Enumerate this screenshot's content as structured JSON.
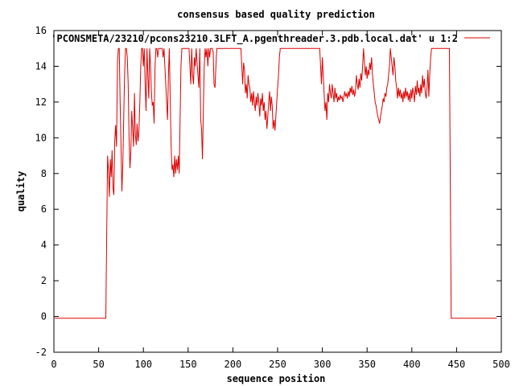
{
  "chart_data": {
    "type": "line",
    "title": "consensus based quality prediction",
    "xlabel": "sequence position",
    "ylabel": "quality",
    "xlim": [
      0,
      500
    ],
    "ylim": [
      -2,
      16
    ],
    "x_ticks": [
      0,
      50,
      100,
      150,
      200,
      250,
      300,
      350,
      400,
      450,
      500
    ],
    "y_ticks": [
      -2,
      0,
      2,
      4,
      6,
      8,
      10,
      12,
      14,
      16
    ],
    "grid": false,
    "legend_position": "top-right",
    "colors": {
      "series": "#dd0000",
      "axes": "#000000"
    },
    "series": [
      {
        "name": "'PCONSMETA/23210/pcons23210.3LFT_A.pgenthreader.3.pdb.local.dat' u 1:2",
        "points": [
          [
            1,
            -0.1
          ],
          [
            58,
            -0.1
          ],
          [
            59,
            4.5
          ],
          [
            60,
            9.0
          ],
          [
            61,
            8.2
          ],
          [
            62,
            6.7
          ],
          [
            63,
            8.8
          ],
          [
            64,
            7.8
          ],
          [
            65,
            9.3
          ],
          [
            66,
            7.2
          ],
          [
            67,
            6.8
          ],
          [
            68,
            9.8
          ],
          [
            69,
            10.7
          ],
          [
            70,
            9.5
          ],
          [
            71,
            14.2
          ],
          [
            72,
            15.0
          ],
          [
            73,
            15.0
          ],
          [
            74,
            12.0
          ],
          [
            75,
            9.5
          ],
          [
            76,
            7.0
          ],
          [
            77,
            8.5
          ],
          [
            78,
            11.0
          ],
          [
            79,
            13.5
          ],
          [
            80,
            15.0
          ],
          [
            81,
            15.0
          ],
          [
            82,
            14.5
          ],
          [
            83,
            13.0
          ],
          [
            84,
            10.0
          ],
          [
            85,
            8.3
          ],
          [
            86,
            9.2
          ],
          [
            87,
            11.5
          ],
          [
            88,
            10.5
          ],
          [
            89,
            9.5
          ],
          [
            90,
            12.5
          ],
          [
            91,
            10.2
          ],
          [
            92,
            9.6
          ],
          [
            93,
            10.8
          ],
          [
            94,
            9.8
          ],
          [
            95,
            10.3
          ],
          [
            96,
            12.0
          ],
          [
            97,
            14.0
          ],
          [
            98,
            15.0
          ],
          [
            99,
            15.0
          ],
          [
            100,
            14.0
          ],
          [
            101,
            15.0
          ],
          [
            102,
            13.0
          ],
          [
            103,
            11.5
          ],
          [
            104,
            15.0
          ],
          [
            105,
            13.5
          ],
          [
            106,
            12.2
          ],
          [
            107,
            15.0
          ],
          [
            108,
            14.0
          ],
          [
            109,
            12.5
          ],
          [
            110,
            11.8
          ],
          [
            111,
            12.0
          ],
          [
            112,
            10.8
          ],
          [
            113,
            14.0
          ],
          [
            114,
            15.0
          ],
          [
            115,
            15.0
          ],
          [
            116,
            14.5
          ],
          [
            117,
            15.0
          ],
          [
            118,
            15.0
          ],
          [
            119,
            15.0
          ],
          [
            120,
            15.0
          ],
          [
            121,
            15.0
          ],
          [
            122,
            14.5
          ],
          [
            123,
            15.0
          ],
          [
            124,
            14.0
          ],
          [
            125,
            13.0
          ],
          [
            126,
            12.0
          ],
          [
            127,
            11.0
          ],
          [
            128,
            13.5
          ],
          [
            129,
            15.0
          ],
          [
            130,
            12.0
          ],
          [
            131,
            9.5
          ],
          [
            132,
            8.2
          ],
          [
            133,
            8.5
          ],
          [
            134,
            7.8
          ],
          [
            135,
            9.0
          ],
          [
            136,
            8.0
          ],
          [
            137,
            8.8
          ],
          [
            138,
            8.2
          ],
          [
            139,
            9.0
          ],
          [
            140,
            8.0
          ],
          [
            141,
            11.0
          ],
          [
            142,
            14.0
          ],
          [
            143,
            15.0
          ],
          [
            144,
            15.0
          ],
          [
            150,
            15.0
          ],
          [
            151,
            15.0
          ],
          [
            152,
            14.0
          ],
          [
            153,
            13.0
          ],
          [
            154,
            15.0
          ],
          [
            155,
            13.5
          ],
          [
            156,
            13.0
          ],
          [
            157,
            14.5
          ],
          [
            158,
            14.0
          ],
          [
            159,
            15.0
          ],
          [
            160,
            14.2
          ],
          [
            161,
            13.5
          ],
          [
            162,
            12.8
          ],
          [
            163,
            15.0
          ],
          [
            164,
            11.0
          ],
          [
            165,
            10.5
          ],
          [
            166,
            8.8
          ],
          [
            167,
            11.5
          ],
          [
            168,
            14.0
          ],
          [
            169,
            15.0
          ],
          [
            170,
            14.5
          ],
          [
            171,
            15.0
          ],
          [
            172,
            14.0
          ],
          [
            173,
            15.0
          ],
          [
            174,
            14.5
          ],
          [
            175,
            15.0
          ],
          [
            176,
            15.0
          ],
          [
            177,
            15.0
          ],
          [
            178,
            14.8
          ],
          [
            179,
            13.0
          ],
          [
            180,
            12.8
          ],
          [
            181,
            14.0
          ],
          [
            182,
            15.0
          ],
          [
            183,
            15.0
          ],
          [
            209,
            15.0
          ],
          [
            210,
            14.0
          ],
          [
            211,
            13.0
          ],
          [
            212,
            14.2
          ],
          [
            213,
            13.8
          ],
          [
            214,
            12.5
          ],
          [
            215,
            13.0
          ],
          [
            216,
            12.2
          ],
          [
            217,
            13.5
          ],
          [
            218,
            13.0
          ],
          [
            219,
            12.8
          ],
          [
            220,
            12.0
          ],
          [
            221,
            12.5
          ],
          [
            222,
            11.8
          ],
          [
            223,
            12.6
          ],
          [
            224,
            12.0
          ],
          [
            225,
            11.5
          ],
          [
            226,
            12.3
          ],
          [
            227,
            11.8
          ],
          [
            228,
            12.5
          ],
          [
            229,
            12.0
          ],
          [
            230,
            11.2
          ],
          [
            231,
            12.2
          ],
          [
            232,
            11.8
          ],
          [
            233,
            12.5
          ],
          [
            234,
            11.5
          ],
          [
            235,
            12.0
          ],
          [
            236,
            11.0
          ],
          [
            237,
            11.5
          ],
          [
            238,
            10.5
          ],
          [
            239,
            11.2
          ],
          [
            240,
            12.0
          ],
          [
            241,
            12.6
          ],
          [
            242,
            11.5
          ],
          [
            243,
            12.3
          ],
          [
            244,
            11.8
          ],
          [
            245,
            10.5
          ],
          [
            246,
            11.0
          ],
          [
            247,
            10.4
          ],
          [
            248,
            11.2
          ],
          [
            249,
            12.0
          ],
          [
            250,
            12.8
          ],
          [
            251,
            13.5
          ],
          [
            252,
            14.5
          ],
          [
            253,
            15.0
          ],
          [
            254,
            15.0
          ],
          [
            297,
            15.0
          ],
          [
            298,
            14.0
          ],
          [
            299,
            13.0
          ],
          [
            300,
            14.5
          ],
          [
            301,
            13.5
          ],
          [
            302,
            12.5
          ],
          [
            303,
            11.5
          ],
          [
            304,
            12.0
          ],
          [
            305,
            11.0
          ],
          [
            306,
            12.5
          ],
          [
            307,
            12.0
          ],
          [
            308,
            13.0
          ],
          [
            309,
            12.5
          ],
          [
            310,
            12.2
          ],
          [
            311,
            13.0
          ],
          [
            312,
            12.5
          ],
          [
            313,
            12.0
          ],
          [
            314,
            12.8
          ],
          [
            315,
            12.2
          ],
          [
            316,
            12.5
          ],
          [
            317,
            12.0
          ],
          [
            318,
            12.3
          ],
          [
            319,
            12.1
          ],
          [
            320,
            12.4
          ],
          [
            321,
            12.2
          ],
          [
            322,
            12.3
          ],
          [
            323,
            12.0
          ],
          [
            324,
            12.3
          ],
          [
            325,
            12.6
          ],
          [
            326,
            12.3
          ],
          [
            327,
            12.5
          ],
          [
            328,
            12.2
          ],
          [
            329,
            12.6
          ],
          [
            330,
            12.3
          ],
          [
            331,
            12.8
          ],
          [
            332,
            12.5
          ],
          [
            333,
            12.9
          ],
          [
            334,
            12.4
          ],
          [
            335,
            12.7
          ],
          [
            336,
            12.3
          ],
          [
            337,
            12.6
          ],
          [
            338,
            13.5
          ],
          [
            339,
            13.0
          ],
          [
            340,
            12.7
          ],
          [
            341,
            13.3
          ],
          [
            342,
            12.8
          ],
          [
            343,
            13.6
          ],
          [
            344,
            13.2
          ],
          [
            345,
            14.0
          ],
          [
            346,
            15.0
          ],
          [
            347,
            14.2
          ],
          [
            348,
            13.5
          ],
          [
            349,
            14.0
          ],
          [
            350,
            13.3
          ],
          [
            351,
            13.8
          ],
          [
            352,
            13.5
          ],
          [
            353,
            14.2
          ],
          [
            354,
            13.8
          ],
          [
            355,
            14.5
          ],
          [
            356,
            13.5
          ],
          [
            357,
            13.0
          ],
          [
            358,
            12.5
          ],
          [
            359,
            12.0
          ],
          [
            360,
            11.8
          ],
          [
            361,
            11.5
          ],
          [
            362,
            11.2
          ],
          [
            363,
            11.0
          ],
          [
            364,
            10.8
          ],
          [
            365,
            11.2
          ],
          [
            366,
            11.5
          ],
          [
            367,
            11.8
          ],
          [
            368,
            12.2
          ],
          [
            369,
            12.0
          ],
          [
            370,
            12.5
          ],
          [
            371,
            12.3
          ],
          [
            372,
            12.8
          ],
          [
            373,
            13.0
          ],
          [
            374,
            13.5
          ],
          [
            375,
            14.0
          ],
          [
            376,
            15.0
          ],
          [
            377,
            14.5
          ],
          [
            378,
            14.0
          ],
          [
            379,
            13.5
          ],
          [
            380,
            14.5
          ],
          [
            381,
            14.0
          ],
          [
            382,
            13.2
          ],
          [
            383,
            12.8
          ],
          [
            384,
            12.2
          ],
          [
            385,
            12.8
          ],
          [
            386,
            12.3
          ],
          [
            387,
            12.7
          ],
          [
            388,
            12.2
          ],
          [
            389,
            12.5
          ],
          [
            390,
            12.0
          ],
          [
            391,
            12.6
          ],
          [
            392,
            12.2
          ],
          [
            393,
            12.8
          ],
          [
            394,
            12.3
          ],
          [
            395,
            12.6
          ],
          [
            396,
            12.1
          ],
          [
            397,
            12.5
          ],
          [
            398,
            12.0
          ],
          [
            399,
            12.7
          ],
          [
            400,
            12.2
          ],
          [
            401,
            12.8
          ],
          [
            402,
            12.5
          ],
          [
            403,
            12.0
          ],
          [
            404,
            12.9
          ],
          [
            405,
            12.4
          ],
          [
            406,
            13.2
          ],
          [
            407,
            12.5
          ],
          [
            408,
            12.8
          ],
          [
            409,
            12.3
          ],
          [
            410,
            13.0
          ],
          [
            411,
            12.5
          ],
          [
            412,
            13.5
          ],
          [
            413,
            12.8
          ],
          [
            414,
            13.3
          ],
          [
            415,
            12.5
          ],
          [
            416,
            12.2
          ],
          [
            417,
            12.8
          ],
          [
            418,
            13.8
          ],
          [
            419,
            12.3
          ],
          [
            420,
            13.5
          ],
          [
            421,
            14.5
          ],
          [
            422,
            15.0
          ],
          [
            423,
            15.0
          ],
          [
            442,
            15.0
          ],
          [
            443,
            7.5
          ],
          [
            444,
            -0.1
          ],
          [
            495,
            -0.1
          ]
        ]
      }
    ]
  }
}
